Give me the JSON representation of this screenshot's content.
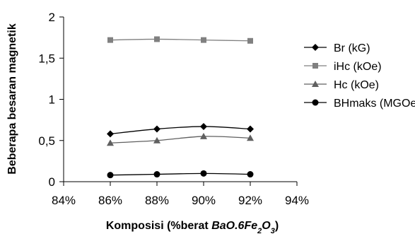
{
  "chart_data": {
    "type": "line",
    "title": "",
    "ylabel": "Beberapa besaran magnetik",
    "xlabel": {
      "prefix": "Komposisi (%berat ",
      "formula": [
        {
          "t": "BaO.6Fe",
          "sub": false
        },
        {
          "t": "2",
          "sub": true
        },
        {
          "t": "O",
          "sub": false
        },
        {
          "t": "3",
          "sub": true
        }
      ],
      "suffix": ")"
    },
    "x_ticks": [
      "84%",
      "86%",
      "88%",
      "90%",
      "92%",
      "94%"
    ],
    "x_tick_values": [
      84,
      86,
      88,
      90,
      92,
      94
    ],
    "xlim": [
      84,
      94
    ],
    "y_ticks": [
      "0",
      "0,5",
      "1",
      "1,5",
      "2"
    ],
    "y_tick_values": [
      0,
      0.5,
      1,
      1.5,
      2
    ],
    "ylim": [
      0,
      2
    ],
    "grid": false,
    "legend_position": "right",
    "x": [
      86,
      88,
      90,
      92
    ],
    "series": [
      {
        "name": "Br (kG)",
        "marker": "diamond",
        "values": [
          0.58,
          0.64,
          0.67,
          0.64
        ]
      },
      {
        "name": "iHc (kOe)",
        "marker": "square",
        "values": [
          1.72,
          1.73,
          1.72,
          1.71
        ]
      },
      {
        "name": "Hc (kOe)",
        "marker": "triangle",
        "values": [
          0.47,
          0.5,
          0.55,
          0.53
        ]
      },
      {
        "name": "BHmaks (MGOe)",
        "marker": "circle",
        "values": [
          0.08,
          0.09,
          0.1,
          0.09
        ]
      }
    ],
    "colors": {
      "Br (kG)": "#000000",
      "iHc (kOe)": "#808080",
      "Hc (kOe)": "#606060",
      "BHmaks (MGOe)": "#000000"
    }
  }
}
